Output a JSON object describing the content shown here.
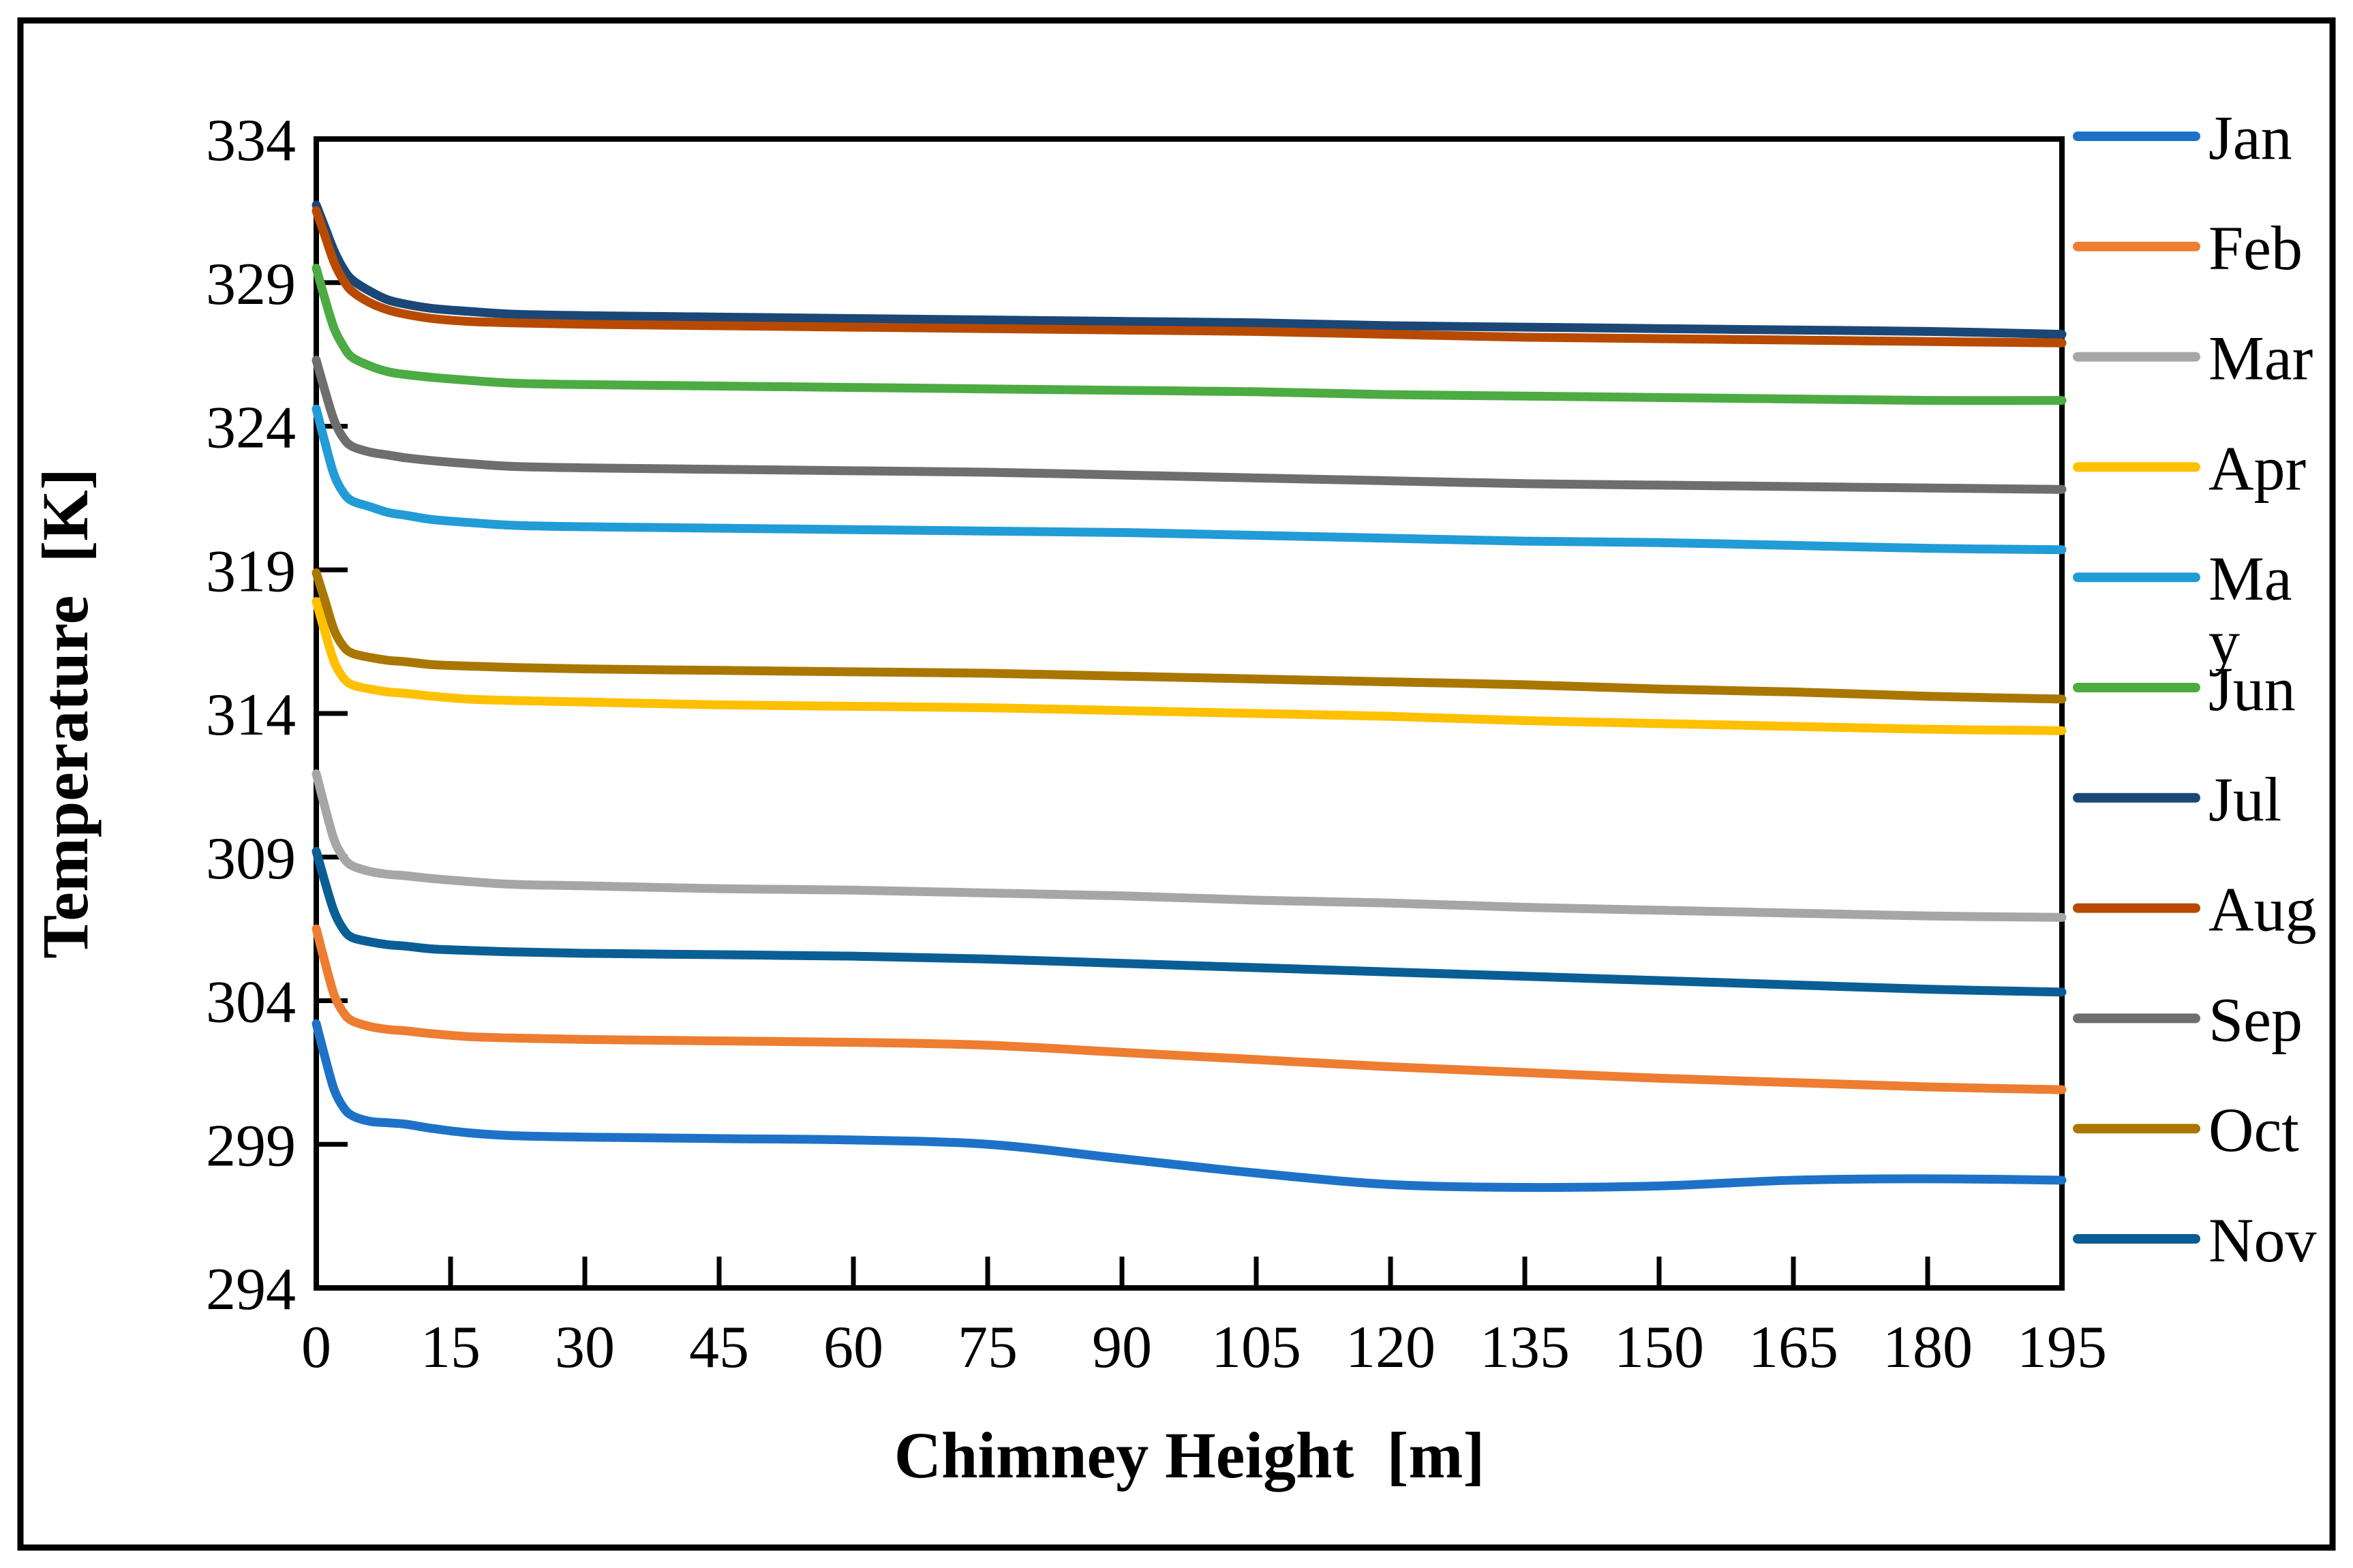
{
  "figure": {
    "background": "#ffffff",
    "border_color": "#000000",
    "axis_color": "#000000"
  },
  "chart_data": {
    "type": "line",
    "title": "",
    "xlabel": "Chimney Height  [m]",
    "ylabel": "Temperature  [K]",
    "xlim": [
      0,
      195
    ],
    "ylim": [
      294,
      334
    ],
    "x_ticks": [
      0,
      15,
      30,
      45,
      60,
      75,
      90,
      105,
      120,
      135,
      150,
      165,
      180,
      195
    ],
    "y_ticks": [
      294,
      299,
      304,
      309,
      314,
      319,
      324,
      329,
      334
    ],
    "grid": false,
    "legend_position": "right",
    "x": [
      0,
      1,
      2,
      3,
      4,
      6,
      8,
      10,
      13,
      17,
      22,
      30,
      45,
      60,
      75,
      90,
      105,
      120,
      135,
      150,
      165,
      180,
      195
    ],
    "series": [
      {
        "name": "Jan",
        "color": "#1D72C8",
        "legend_lines": [
          "Jan"
        ],
        "values": [
          303.2,
          302.0,
          300.9,
          300.3,
          300.0,
          299.8,
          299.75,
          299.7,
          299.55,
          299.4,
          299.3,
          299.25,
          299.2,
          299.15,
          299.0,
          298.5,
          298.0,
          297.6,
          297.5,
          297.55,
          297.75,
          297.8,
          297.75
        ]
      },
      {
        "name": "Feb",
        "color": "#ED7D31",
        "legend_lines": [
          "Feb"
        ],
        "values": [
          306.5,
          305.3,
          304.2,
          303.6,
          303.3,
          303.1,
          303.0,
          302.95,
          302.85,
          302.75,
          302.7,
          302.65,
          302.6,
          302.55,
          302.45,
          302.2,
          301.95,
          301.7,
          301.5,
          301.3,
          301.15,
          301.0,
          300.9
        ]
      },
      {
        "name": "Mar",
        "color": "#A6A6A6",
        "legend_lines": [
          "Mar"
        ],
        "values": [
          311.9,
          310.7,
          309.6,
          309.0,
          308.7,
          308.5,
          308.4,
          308.35,
          308.25,
          308.15,
          308.05,
          308.0,
          307.9,
          307.85,
          307.75,
          307.65,
          307.5,
          307.4,
          307.25,
          307.15,
          307.05,
          306.95,
          306.9
        ]
      },
      {
        "name": "Apr",
        "color": "#FFC000",
        "legend_lines": [
          "Apr"
        ],
        "values": [
          317.9,
          316.8,
          315.8,
          315.25,
          315.0,
          314.85,
          314.75,
          314.7,
          314.6,
          314.5,
          314.45,
          314.4,
          314.3,
          314.25,
          314.2,
          314.1,
          314.0,
          313.9,
          313.75,
          313.65,
          313.55,
          313.45,
          313.4
        ]
      },
      {
        "name": "May",
        "color": "#219CD7",
        "legend_lines": [
          "Ma",
          "y"
        ],
        "values": [
          324.6,
          323.4,
          322.3,
          321.7,
          321.4,
          321.2,
          321.0,
          320.9,
          320.75,
          320.65,
          320.55,
          320.5,
          320.45,
          320.4,
          320.35,
          320.3,
          320.2,
          320.1,
          320.0,
          319.95,
          319.85,
          319.75,
          319.7
        ]
      },
      {
        "name": "Jun",
        "color": "#4CAB42",
        "legend_lines": [
          "Jun"
        ],
        "values": [
          329.5,
          328.4,
          327.4,
          326.8,
          326.4,
          326.1,
          325.9,
          325.8,
          325.7,
          325.6,
          325.5,
          325.45,
          325.4,
          325.35,
          325.3,
          325.25,
          325.2,
          325.1,
          325.05,
          325.0,
          324.95,
          324.9,
          324.9
        ]
      },
      {
        "name": "Jul",
        "color": "#1B4776",
        "legend_lines": [
          "Jul"
        ],
        "values": [
          331.7,
          330.9,
          330.1,
          329.5,
          329.1,
          328.7,
          328.4,
          328.25,
          328.1,
          328.0,
          327.9,
          327.85,
          327.8,
          327.75,
          327.7,
          327.65,
          327.6,
          327.5,
          327.45,
          327.4,
          327.35,
          327.3,
          327.2
        ]
      },
      {
        "name": "Aug",
        "color": "#B84A00",
        "legend_lines": [
          "Aug"
        ],
        "values": [
          331.5,
          330.6,
          329.7,
          329.1,
          328.7,
          328.3,
          328.05,
          327.9,
          327.75,
          327.65,
          327.6,
          327.55,
          327.5,
          327.45,
          327.4,
          327.35,
          327.3,
          327.2,
          327.1,
          327.05,
          327.0,
          326.95,
          326.9
        ]
      },
      {
        "name": "Sep",
        "color": "#6E6E6E",
        "legend_lines": [
          "Sep"
        ],
        "values": [
          326.3,
          325.2,
          324.2,
          323.6,
          323.3,
          323.1,
          323.0,
          322.9,
          322.8,
          322.7,
          322.6,
          322.55,
          322.5,
          322.45,
          322.4,
          322.3,
          322.2,
          322.1,
          322.0,
          321.95,
          321.9,
          321.85,
          321.8
        ]
      },
      {
        "name": "Oct",
        "color": "#A97700",
        "legend_lines": [
          "Oct"
        ],
        "values": [
          318.9,
          317.9,
          316.9,
          316.35,
          316.1,
          315.95,
          315.85,
          315.8,
          315.7,
          315.65,
          315.6,
          315.55,
          315.5,
          315.45,
          315.4,
          315.3,
          315.2,
          315.1,
          315.0,
          314.85,
          314.75,
          314.6,
          314.5
        ]
      },
      {
        "name": "Nov",
        "color": "#0A5E96",
        "legend_lines": [
          "Nov"
        ],
        "values": [
          309.2,
          308.1,
          307.1,
          306.5,
          306.2,
          306.05,
          305.95,
          305.9,
          305.8,
          305.75,
          305.7,
          305.65,
          305.6,
          305.55,
          305.45,
          305.3,
          305.15,
          305.0,
          304.85,
          304.7,
          304.55,
          304.4,
          304.3
        ]
      }
    ]
  }
}
